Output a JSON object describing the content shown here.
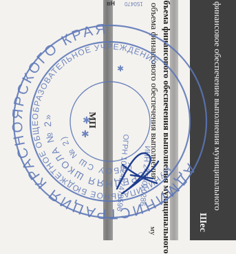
{
  "document": {
    "line_financing": "финансовое обеспечение выполнения муниципального",
    "line_volume": "объема финансового обеспечения выполнения муниципального",
    "line_volume_cont": "объема финансового обеспечения выполнения",
    "header_right": "Шес",
    "trail": "му",
    "mp_label": "МП",
    "fragment_top": "150470",
    "fragment_top2": "вН"
  },
  "stamp": {
    "text_outer": "АДМИНИСТРАЦИЯ КРАСНОЯРСКОГО КРАЯ",
    "text_inner1": "МУНИЦИПАЛЬНОЕ БЮДЖЕТНОЕ ОБЩЕОБРАЗОВАТЕЛЬНОЕ УЧРЕЖДЕНИЕ",
    "text_inner2": "«СРЕДНЯЯ ШКОЛА № 2»",
    "text_inner3": "(МБОУ СШ № 2)",
    "ogrn": "ОГРН 1022402478596",
    "inn": "ИНН 2455010286",
    "color": "#5c77b8"
  },
  "colors": {
    "ink_blue": "#5c77b8",
    "dark_band": "#3f3f3f"
  }
}
